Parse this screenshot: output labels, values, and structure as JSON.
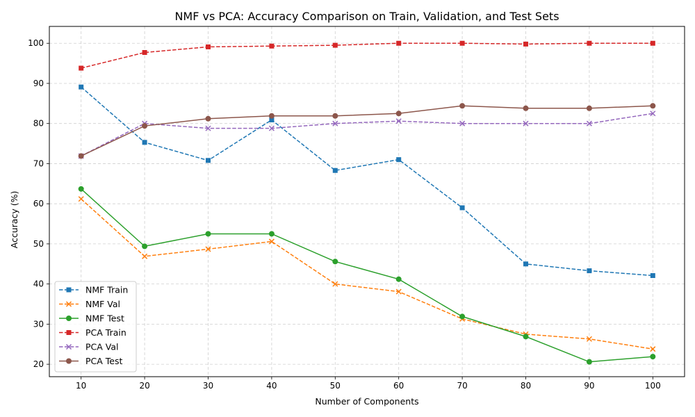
{
  "chart_data": {
    "type": "line",
    "title": "NMF vs PCA: Accuracy Comparison on Train, Validation, and Test Sets",
    "xlabel": "Number of Components",
    "ylabel": "Accuracy (%)",
    "x": [
      10,
      20,
      30,
      40,
      50,
      60,
      70,
      80,
      90,
      100
    ],
    "xlim": [
      5,
      105
    ],
    "ylim": [
      16.9,
      104.2
    ],
    "xticks": [
      10,
      20,
      30,
      40,
      50,
      60,
      70,
      80,
      90,
      100
    ],
    "yticks": [
      20,
      30,
      40,
      50,
      60,
      70,
      80,
      90,
      100
    ],
    "grid": true,
    "legend_position": "lower-left",
    "series": [
      {
        "name": "NMF Train",
        "color": "#1f77b4",
        "marker": "square",
        "dash": true,
        "values": [
          89.1,
          75.3,
          70.8,
          80.9,
          68.3,
          71.0,
          59.0,
          45.0,
          43.3,
          42.1
        ]
      },
      {
        "name": "NMF Val",
        "color": "#ff7f0e",
        "marker": "x",
        "dash": true,
        "values": [
          61.2,
          46.9,
          48.7,
          50.6,
          40.0,
          38.1,
          31.3,
          27.5,
          26.3,
          23.8
        ]
      },
      {
        "name": "NMF Test",
        "color": "#2ca02c",
        "marker": "circle",
        "dash": false,
        "values": [
          63.7,
          49.4,
          52.5,
          52.5,
          45.6,
          41.2,
          31.9,
          26.9,
          20.6,
          21.9
        ]
      },
      {
        "name": "PCA Train",
        "color": "#d62728",
        "marker": "square",
        "dash": true,
        "values": [
          93.8,
          97.7,
          99.1,
          99.3,
          99.5,
          100.0,
          100.0,
          99.8,
          100.0,
          100.0
        ]
      },
      {
        "name": "PCA Val",
        "color": "#9467bd",
        "marker": "x",
        "dash": true,
        "values": [
          71.9,
          80.0,
          78.8,
          78.8,
          80.0,
          80.6,
          80.0,
          80.0,
          80.0,
          82.5
        ]
      },
      {
        "name": "PCA Test",
        "color": "#8c564b",
        "marker": "circle",
        "dash": false,
        "values": [
          71.9,
          79.4,
          81.2,
          81.9,
          81.9,
          82.5,
          84.4,
          83.8,
          83.8,
          84.4
        ]
      }
    ]
  }
}
